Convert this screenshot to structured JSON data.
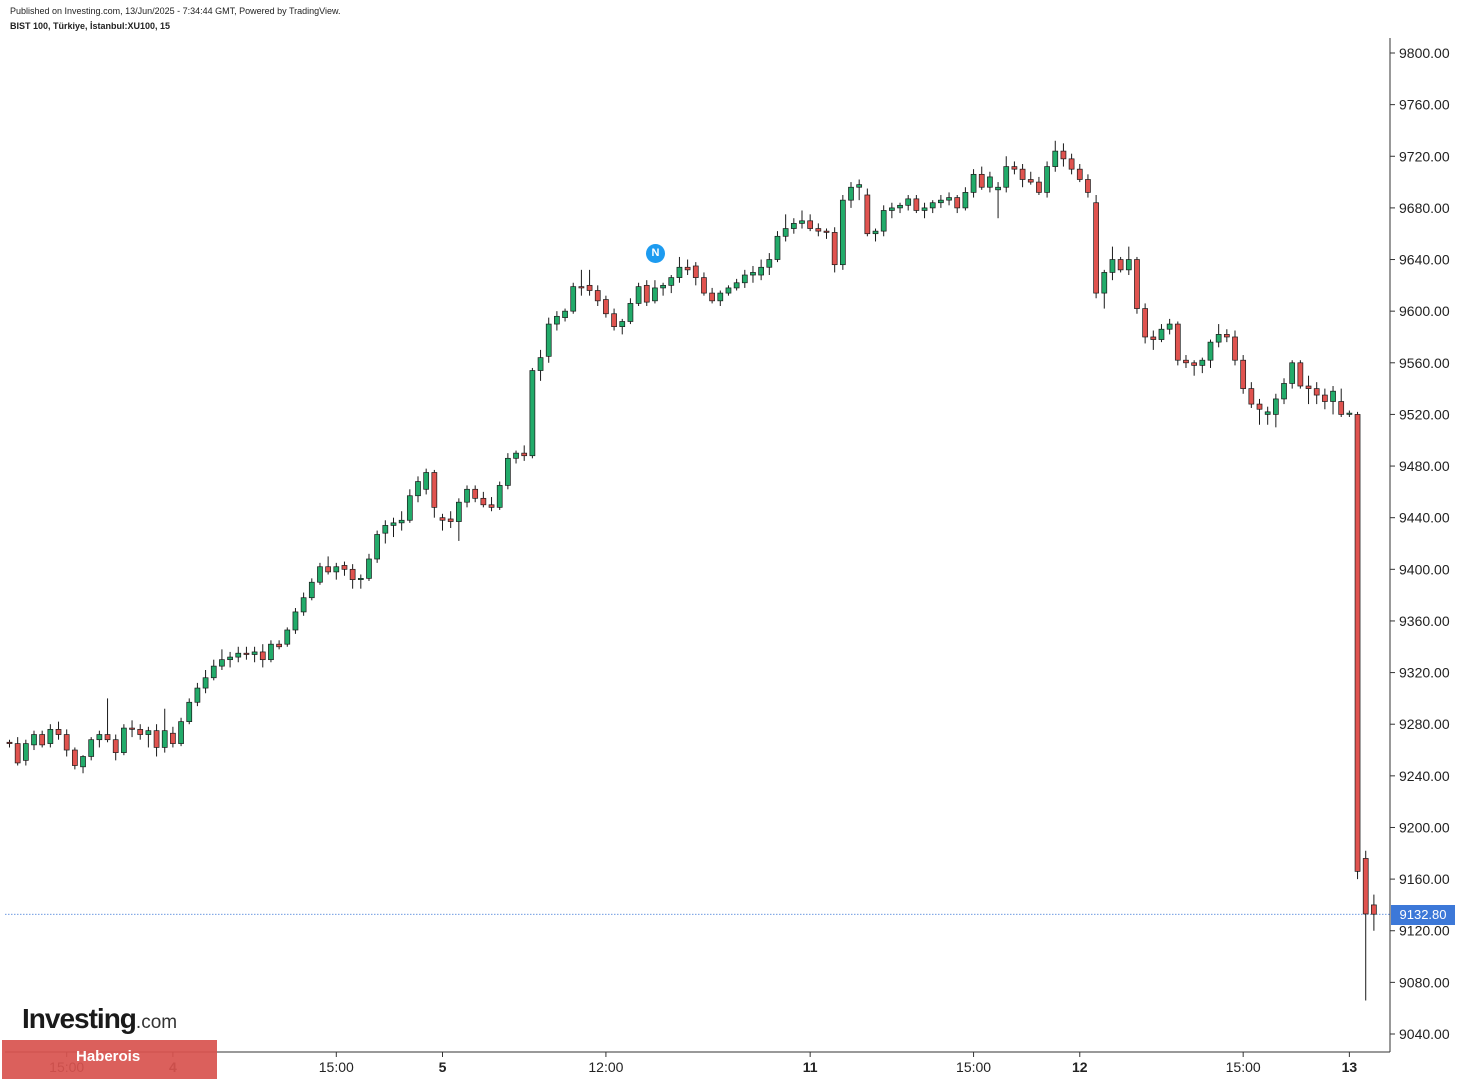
{
  "header": {
    "published": "Published on Investing.com, 13/Jun/2025 - 7:34:44 GMT, Powered by TradingView.",
    "symbol": "BIST 100, Türkiye, İstanbul:XU100, 15"
  },
  "branding": {
    "logo_main": "Investing",
    "logo_suffix": ".com",
    "banner_label": "Haberois"
  },
  "news_badge": "N",
  "colors": {
    "up": "#22ab6a",
    "down": "#e0534f",
    "last_price_line": "#3c78d8",
    "banner": "#d9534f"
  },
  "chart_data": {
    "type": "candlestick",
    "title": "",
    "xlabel": "",
    "ylabel": "",
    "ylim": [
      9020,
      9820
    ],
    "y_ticks": [
      "9040.00",
      "9080.00",
      "9120.00",
      "9160.00",
      "9200.00",
      "9240.00",
      "9280.00",
      "9320.00",
      "9360.00",
      "9400.00",
      "9440.00",
      "9480.00",
      "9520.00",
      "9560.00",
      "9600.00",
      "9640.00",
      "9680.00",
      "9720.00",
      "9760.00",
      "9800.00"
    ],
    "x_ticks": [
      {
        "label": "15:00",
        "bar": 7,
        "bold": false
      },
      {
        "label": "4",
        "bar": 20,
        "bold": true
      },
      {
        "label": "15:00",
        "bar": 40,
        "bold": false
      },
      {
        "label": "5",
        "bar": 53,
        "bold": true
      },
      {
        "label": "12:00",
        "bar": 73,
        "bold": false
      },
      {
        "label": "11",
        "bar": 98,
        "bold": true
      },
      {
        "label": "15:00",
        "bar": 118,
        "bold": false
      },
      {
        "label": "12",
        "bar": 131,
        "bold": true
      },
      {
        "label": "15:00",
        "bar": 151,
        "bold": false
      },
      {
        "label": "13",
        "bar": 164,
        "bold": true
      }
    ],
    "last_price": 9132.8,
    "last_price_label": "9132.80",
    "grid": false,
    "candles": [
      [
        9266,
        9268,
        9262,
        9265
      ],
      [
        9265,
        9270,
        9248,
        9250
      ],
      [
        9252,
        9268,
        9248,
        9265
      ],
      [
        9264,
        9275,
        9260,
        9272
      ],
      [
        9272,
        9275,
        9262,
        9264
      ],
      [
        9265,
        9280,
        9262,
        9276
      ],
      [
        9276,
        9282,
        9268,
        9272
      ],
      [
        9272,
        9276,
        9255,
        9260
      ],
      [
        9260,
        9262,
        9245,
        9248
      ],
      [
        9247,
        9256,
        9242,
        9255
      ],
      [
        9255,
        9270,
        9252,
        9268
      ],
      [
        9268,
        9275,
        9262,
        9272
      ],
      [
        9272,
        9300,
        9266,
        9268
      ],
      [
        9268,
        9272,
        9252,
        9258
      ],
      [
        9258,
        9280,
        9256,
        9277
      ],
      [
        9277,
        9283,
        9270,
        9276
      ],
      [
        9276,
        9280,
        9268,
        9272
      ],
      [
        9272,
        9278,
        9262,
        9275
      ],
      [
        9275,
        9280,
        9255,
        9262
      ],
      [
        9262,
        9292,
        9258,
        9275
      ],
      [
        9273,
        9278,
        9262,
        9265
      ],
      [
        9265,
        9285,
        9263,
        9282
      ],
      [
        9282,
        9300,
        9280,
        9297
      ],
      [
        9297,
        9312,
        9294,
        9308
      ],
      [
        9308,
        9322,
        9304,
        9316
      ],
      [
        9316,
        9330,
        9314,
        9325
      ],
      [
        9325,
        9338,
        9322,
        9330
      ],
      [
        9330,
        9336,
        9324,
        9332
      ],
      [
        9332,
        9340,
        9328,
        9335
      ],
      [
        9335,
        9340,
        9330,
        9334
      ],
      [
        9334,
        9340,
        9328,
        9336
      ],
      [
        9336,
        9342,
        9324,
        9330
      ],
      [
        9330,
        9345,
        9328,
        9342
      ],
      [
        9342,
        9345,
        9338,
        9340
      ],
      [
        9342,
        9355,
        9340,
        9353
      ],
      [
        9353,
        9370,
        9350,
        9367
      ],
      [
        9367,
        9382,
        9364,
        9378
      ],
      [
        9378,
        9393,
        9376,
        9390
      ],
      [
        9390,
        9405,
        9388,
        9402
      ],
      [
        9402,
        9410,
        9396,
        9398
      ],
      [
        9398,
        9405,
        9392,
        9402
      ],
      [
        9403,
        9406,
        9395,
        9400
      ],
      [
        9400,
        9404,
        9385,
        9392
      ],
      [
        9392,
        9396,
        9385,
        9393
      ],
      [
        9393,
        9412,
        9391,
        9408
      ],
      [
        9408,
        9430,
        9405,
        9427
      ],
      [
        9428,
        9438,
        9420,
        9434
      ],
      [
        9434,
        9440,
        9425,
        9436
      ],
      [
        9436,
        9445,
        9430,
        9438
      ],
      [
        9438,
        9462,
        9436,
        9457
      ],
      [
        9457,
        9472,
        9452,
        9468
      ],
      [
        9462,
        9478,
        9458,
        9475
      ],
      [
        9475,
        9477,
        9440,
        9448
      ],
      [
        9440,
        9443,
        9430,
        9438
      ],
      [
        9439,
        9445,
        9432,
        9437
      ],
      [
        9437,
        9455,
        9422,
        9452
      ],
      [
        9452,
        9465,
        9448,
        9462
      ],
      [
        9462,
        9465,
        9452,
        9455
      ],
      [
        9455,
        9460,
        9448,
        9450
      ],
      [
        9450,
        9456,
        9445,
        9448
      ],
      [
        9448,
        9468,
        9446,
        9465
      ],
      [
        9465,
        9490,
        9462,
        9486
      ],
      [
        9486,
        9492,
        9482,
        9490
      ],
      [
        9490,
        9496,
        9484,
        9488
      ],
      [
        9488,
        9556,
        9486,
        9554
      ],
      [
        9554,
        9570,
        9546,
        9564
      ],
      [
        9565,
        9595,
        9560,
        9590
      ],
      [
        9590,
        9600,
        9585,
        9596
      ],
      [
        9595,
        9602,
        9592,
        9600
      ],
      [
        9600,
        9622,
        9598,
        9619
      ],
      [
        9619,
        9632,
        9612,
        9618
      ],
      [
        9620,
        9632,
        9612,
        9616
      ],
      [
        9616,
        9620,
        9604,
        9608
      ],
      [
        9609,
        9612,
        9595,
        9598
      ],
      [
        9598,
        9602,
        9585,
        9588
      ],
      [
        9588,
        9594,
        9582,
        9592
      ],
      [
        9592,
        9610,
        9590,
        9606
      ],
      [
        9606,
        9622,
        9604,
        9619
      ],
      [
        9620,
        9624,
        9604,
        9607
      ],
      [
        9608,
        9624,
        9606,
        9618
      ],
      [
        9618,
        9622,
        9612,
        9620
      ],
      [
        9620,
        9628,
        9614,
        9626
      ],
      [
        9626,
        9642,
        9622,
        9634
      ],
      [
        9634,
        9640,
        9628,
        9632
      ],
      [
        9635,
        9638,
        9620,
        9626
      ],
      [
        9626,
        9630,
        9612,
        9614
      ],
      [
        9614,
        9618,
        9606,
        9608
      ],
      [
        9608,
        9616,
        9604,
        9614
      ],
      [
        9614,
        9620,
        9612,
        9618
      ],
      [
        9618,
        9625,
        9616,
        9622
      ],
      [
        9622,
        9632,
        9618,
        9628
      ],
      [
        9628,
        9635,
        9622,
        9630
      ],
      [
        9628,
        9640,
        9624,
        9634
      ],
      [
        9634,
        9645,
        9628,
        9640
      ],
      [
        9640,
        9662,
        9638,
        9658
      ],
      [
        9658,
        9675,
        9654,
        9664
      ],
      [
        9664,
        9672,
        9660,
        9668
      ],
      [
        9668,
        9678,
        9664,
        9670
      ],
      [
        9670,
        9675,
        9662,
        9664
      ],
      [
        9664,
        9668,
        9658,
        9662
      ],
      [
        9662,
        9664,
        9656,
        9661
      ],
      [
        9661,
        9665,
        9630,
        9636
      ],
      [
        9636,
        9690,
        9632,
        9686
      ],
      [
        9686,
        9700,
        9680,
        9696
      ],
      [
        9696,
        9702,
        9686,
        9698
      ],
      [
        9690,
        9695,
        9658,
        9660
      ],
      [
        9660,
        9664,
        9654,
        9662
      ],
      [
        9662,
        9682,
        9658,
        9678
      ],
      [
        9678,
        9684,
        9672,
        9680
      ],
      [
        9680,
        9684,
        9676,
        9682
      ],
      [
        9682,
        9690,
        9678,
        9687
      ],
      [
        9687,
        9690,
        9676,
        9678
      ],
      [
        9678,
        9684,
        9672,
        9680
      ],
      [
        9680,
        9686,
        9676,
        9684
      ],
      [
        9684,
        9690,
        9680,
        9686
      ],
      [
        9686,
        9692,
        9682,
        9688
      ],
      [
        9688,
        9690,
        9676,
        9680
      ],
      [
        9680,
        9696,
        9678,
        9692
      ],
      [
        9692,
        9710,
        9688,
        9706
      ],
      [
        9706,
        9712,
        9694,
        9696
      ],
      [
        9696,
        9708,
        9692,
        9704
      ],
      [
        9694,
        9700,
        9672,
        9696
      ],
      [
        9696,
        9720,
        9692,
        9712
      ],
      [
        9712,
        9716,
        9706,
        9710
      ],
      [
        9710,
        9714,
        9696,
        9702
      ],
      [
        9702,
        9708,
        9698,
        9700
      ],
      [
        9700,
        9704,
        9690,
        9692
      ],
      [
        9692,
        9716,
        9688,
        9712
      ],
      [
        9712,
        9732,
        9708,
        9724
      ],
      [
        9724,
        9730,
        9712,
        9718
      ],
      [
        9718,
        9722,
        9706,
        9710
      ],
      [
        9710,
        9714,
        9700,
        9702
      ],
      [
        9702,
        9706,
        9688,
        9692
      ],
      [
        9684,
        9690,
        9610,
        9614
      ],
      [
        9614,
        9632,
        9602,
        9630
      ],
      [
        9630,
        9650,
        9624,
        9640
      ],
      [
        9640,
        9642,
        9630,
        9632
      ],
      [
        9632,
        9650,
        9628,
        9640
      ],
      [
        9640,
        9642,
        9598,
        9602
      ],
      [
        9602,
        9606,
        9575,
        9580
      ],
      [
        9580,
        9585,
        9570,
        9578
      ],
      [
        9578,
        9590,
        9576,
        9586
      ],
      [
        9586,
        9594,
        9582,
        9590
      ],
      [
        9590,
        9592,
        9558,
        9562
      ],
      [
        9562,
        9566,
        9556,
        9560
      ],
      [
        9560,
        9562,
        9550,
        9558
      ],
      [
        9558,
        9564,
        9552,
        9562
      ],
      [
        9562,
        9578,
        9556,
        9576
      ],
      [
        9576,
        9590,
        9572,
        9582
      ],
      [
        9582,
        9586,
        9576,
        9580
      ],
      [
        9580,
        9585,
        9558,
        9562
      ],
      [
        9562,
        9566,
        9536,
        9540
      ],
      [
        9540,
        9545,
        9525,
        9528
      ],
      [
        9528,
        9532,
        9512,
        9524
      ],
      [
        9520,
        9526,
        9512,
        9522
      ],
      [
        9520,
        9536,
        9510,
        9532
      ],
      [
        9532,
        9548,
        9528,
        9544
      ],
      [
        9544,
        9562,
        9540,
        9560
      ],
      [
        9560,
        9562,
        9540,
        9542
      ],
      [
        9542,
        9550,
        9528,
        9540
      ],
      [
        9540,
        9545,
        9528,
        9535
      ],
      [
        9535,
        9540,
        9524,
        9530
      ],
      [
        9530,
        9542,
        9520,
        9538
      ],
      [
        9530,
        9540,
        9518,
        9520
      ],
      [
        9520,
        9523,
        9518,
        9521
      ],
      [
        9520,
        9522,
        9160,
        9166
      ],
      [
        9176,
        9182,
        9066,
        9133
      ],
      [
        9140,
        9148,
        9120,
        9132.8
      ]
    ]
  }
}
